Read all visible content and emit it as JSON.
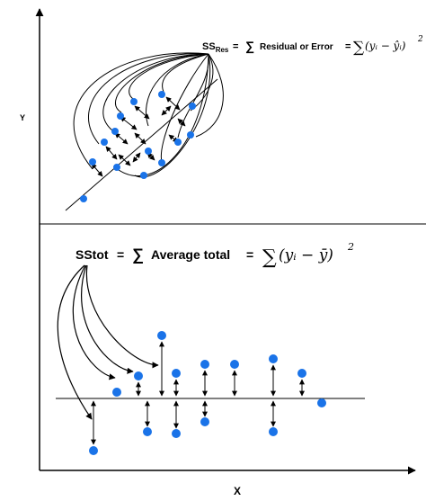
{
  "axis": {
    "y_label": "Y",
    "x_label": "X"
  },
  "top_panel": {
    "ss_label_main": "SS",
    "ss_label_sub": "Res",
    "equals": "=",
    "sigma": "∑",
    "text": "Residual or Error",
    "formula_sum": "∑",
    "formula_body": "(yᵢ − ŷᵢ)",
    "formula_power": "2"
  },
  "bottom_panel": {
    "label": "SStot",
    "equals": "=",
    "sigma": "∑",
    "text": "Average total",
    "formula_sum": "∑",
    "formula_body": "(yᵢ − ȳ)",
    "formula_power": "2"
  },
  "colors": {
    "point": "#1a73e8",
    "line": "#000000"
  }
}
